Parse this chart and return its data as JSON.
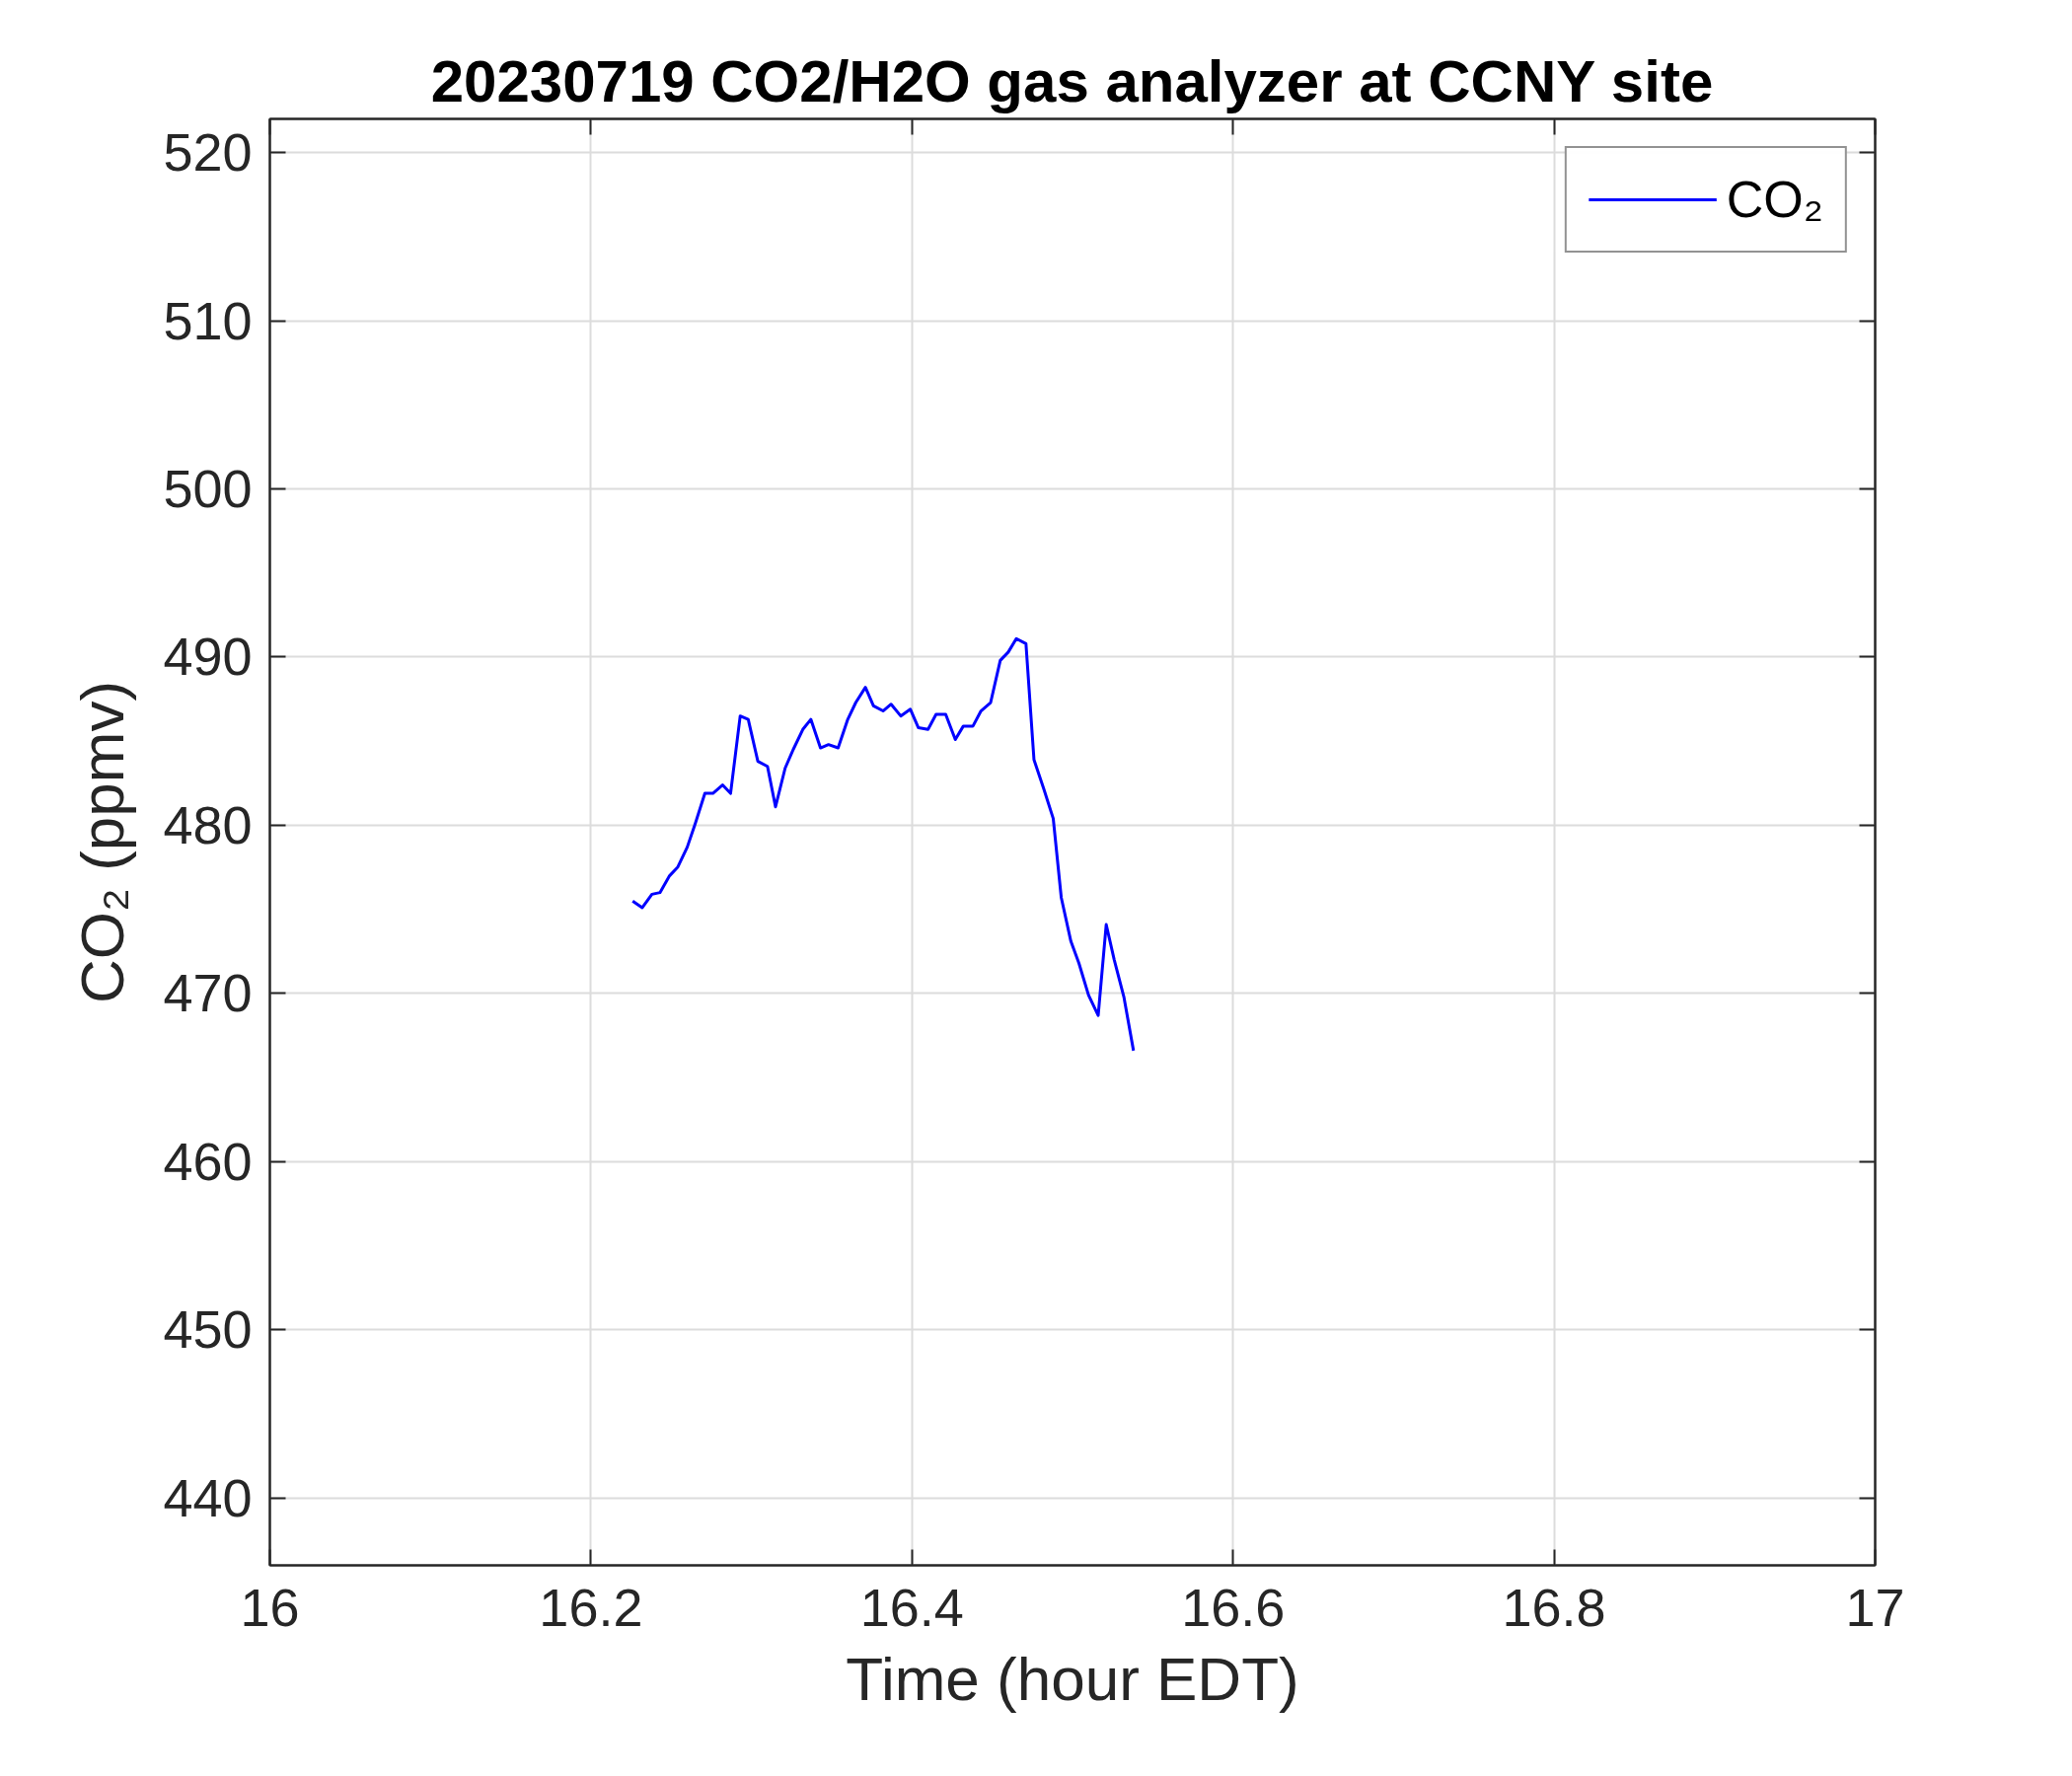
{
  "chart_data": {
    "type": "line",
    "title": "20230719 CO2/H2O gas analyzer at CCNY site",
    "xlabel": "Time (hour EDT)",
    "ylabel": "CO₂ (ppmv)",
    "x": [
      16.226,
      16.232,
      16.238,
      16.243,
      16.249,
      16.254,
      16.26,
      16.265,
      16.271,
      16.276,
      16.282,
      16.287,
      16.293,
      16.298,
      16.304,
      16.31,
      16.315,
      16.321,
      16.326,
      16.332,
      16.337,
      16.343,
      16.348,
      16.354,
      16.36,
      16.365,
      16.371,
      16.376,
      16.382,
      16.387,
      16.393,
      16.399,
      16.404,
      16.41,
      16.415,
      16.421,
      16.427,
      16.432,
      16.438,
      16.443,
      16.449,
      16.455,
      16.46,
      16.465,
      16.471,
      16.476,
      16.482,
      16.488,
      16.493,
      16.499,
      16.504,
      16.51,
      16.516,
      16.521,
      16.526,
      16.532,
      16.538
    ],
    "series": [
      {
        "name": "CO₂",
        "color": "#0000ff",
        "values": [
          475.5,
          475.1,
          475.9,
          476.0,
          477.0,
          477.5,
          478.7,
          480.1,
          481.9,
          481.9,
          482.4,
          481.9,
          486.5,
          486.3,
          483.8,
          483.5,
          481.1,
          483.4,
          484.5,
          485.7,
          486.3,
          484.6,
          484.8,
          484.6,
          486.3,
          487.3,
          488.2,
          487.1,
          486.8,
          487.2,
          486.5,
          486.9,
          485.8,
          485.7,
          486.6,
          486.6,
          485.1,
          485.9,
          485.9,
          486.8,
          487.3,
          489.8,
          490.3,
          491.1,
          490.8,
          483.9,
          482.2,
          480.4,
          475.7,
          473.1,
          471.8,
          469.9,
          468.7,
          474.1,
          472.0,
          469.8,
          466.6
        ]
      }
    ],
    "xlim": [
      16,
      17
    ],
    "ylim": [
      436,
      522
    ],
    "xticks": [
      16,
      16.2,
      16.4,
      16.6,
      16.8,
      17
    ],
    "yticks": [
      440,
      450,
      460,
      470,
      480,
      490,
      500,
      510,
      520
    ],
    "grid": true,
    "legend": "top right"
  }
}
